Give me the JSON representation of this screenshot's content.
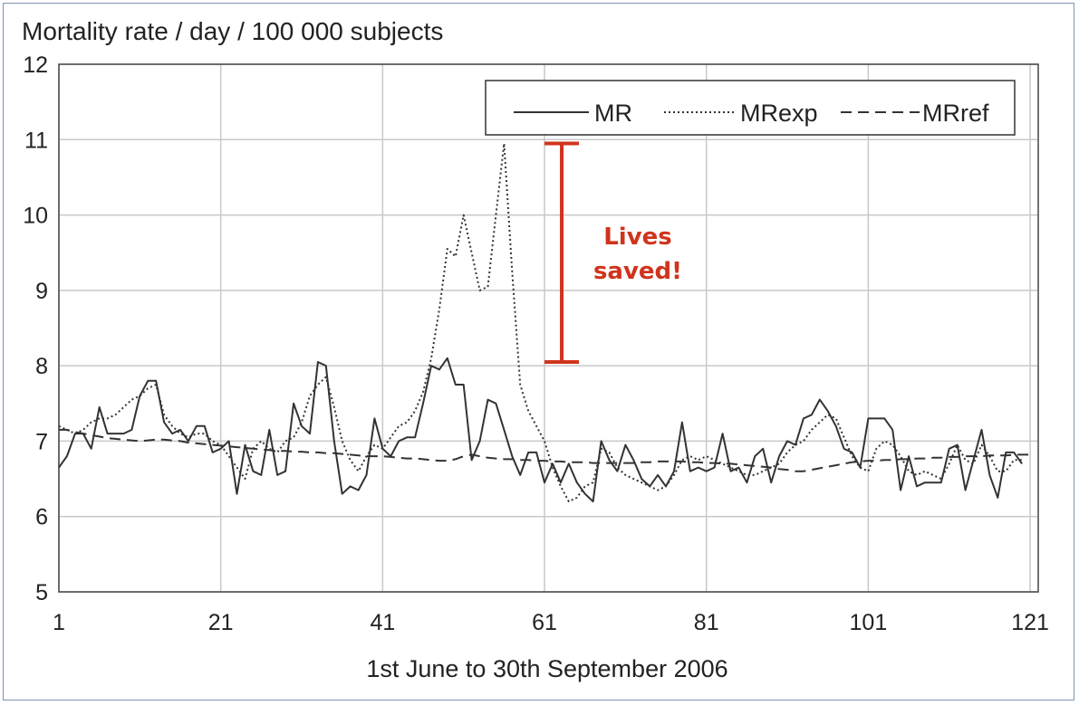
{
  "colors": {
    "annotation": "#d0341c",
    "grid": "#c8c8c8",
    "frame": "#7f95b5",
    "series": "#333333"
  },
  "chart_data": {
    "type": "line",
    "title": "",
    "ylabel": "Mortality rate / day / 100 000 subjects",
    "xlabel": "1st June to 30th September 2006",
    "xlim": [
      1,
      122
    ],
    "ylim": [
      5,
      12
    ],
    "xticks": [
      1,
      21,
      41,
      61,
      81,
      101,
      121
    ],
    "yticks": [
      5,
      6,
      7,
      8,
      9,
      10,
      11,
      12
    ],
    "grid": true,
    "legend_position": "top-right",
    "series": [
      {
        "name": "MR",
        "style": "solid",
        "values": [
          6.65,
          6.8,
          7.1,
          7.1,
          6.9,
          7.45,
          7.1,
          7.1,
          7.1,
          7.15,
          7.6,
          7.8,
          7.8,
          7.25,
          7.1,
          7.15,
          7.0,
          7.2,
          7.2,
          6.85,
          6.9,
          7.0,
          6.3,
          6.95,
          6.6,
          6.55,
          7.15,
          6.55,
          6.6,
          7.5,
          7.2,
          7.1,
          8.05,
          8.0,
          7.0,
          6.3,
          6.4,
          6.35,
          6.55,
          7.3,
          6.9,
          6.8,
          7.0,
          7.05,
          7.05,
          7.5,
          8.0,
          7.95,
          8.1,
          7.75,
          7.75,
          6.75,
          7.0,
          7.55,
          7.5,
          7.15,
          6.8,
          6.55,
          6.85,
          6.85,
          6.45,
          6.7,
          6.45,
          6.7,
          6.45,
          6.3,
          6.2,
          7.0,
          6.75,
          6.6,
          6.95,
          6.75,
          6.5,
          6.4,
          6.55,
          6.4,
          6.6,
          7.25,
          6.6,
          6.65,
          6.6,
          6.65,
          7.1,
          6.6,
          6.65,
          6.45,
          6.8,
          6.9,
          6.45,
          6.8,
          7.0,
          6.95,
          7.3,
          7.35,
          7.55,
          7.4,
          7.2,
          6.9,
          6.85,
          6.65,
          7.3,
          7.3,
          7.3,
          7.15,
          6.35,
          6.8,
          6.4,
          6.45,
          6.45,
          6.45,
          6.9,
          6.95,
          6.35,
          6.75,
          7.15,
          6.55,
          6.25,
          6.85,
          6.85,
          6.7
        ]
      },
      {
        "name": "MRexp",
        "style": "dotted",
        "values": [
          7.2,
          7.15,
          7.1,
          7.15,
          7.25,
          7.3,
          7.3,
          7.35,
          7.45,
          7.55,
          7.6,
          7.7,
          7.75,
          7.35,
          7.2,
          7.1,
          7.05,
          7.1,
          7.1,
          7.0,
          6.95,
          6.8,
          6.65,
          6.5,
          6.9,
          7.0,
          6.9,
          6.85,
          7.0,
          7.05,
          7.25,
          7.6,
          7.75,
          7.85,
          7.45,
          7.0,
          6.75,
          6.6,
          6.8,
          6.95,
          6.9,
          7.05,
          7.2,
          7.25,
          7.4,
          7.65,
          8.1,
          8.75,
          9.55,
          9.45,
          10.0,
          9.5,
          9.0,
          9.05,
          10.0,
          10.95,
          9.25,
          7.75,
          7.4,
          7.2,
          7.0,
          6.65,
          6.4,
          6.2,
          6.25,
          6.4,
          6.45,
          6.9,
          6.85,
          6.65,
          6.55,
          6.5,
          6.45,
          6.4,
          6.35,
          6.4,
          6.55,
          6.75,
          6.8,
          6.75,
          6.8,
          6.75,
          6.7,
          6.65,
          6.6,
          6.55,
          6.55,
          6.6,
          6.65,
          6.7,
          6.85,
          6.95,
          7.0,
          7.15,
          7.25,
          7.35,
          7.3,
          7.05,
          6.8,
          6.65,
          6.6,
          6.9,
          7.0,
          6.95,
          6.8,
          6.6,
          6.55,
          6.6,
          6.55,
          6.5,
          6.7,
          6.95,
          6.75,
          6.7,
          6.95,
          6.8,
          6.6,
          6.6,
          6.75,
          6.75
        ]
      },
      {
        "name": "MRref",
        "style": "dashed",
        "values": [
          7.15,
          7.15,
          7.12,
          7.1,
          7.08,
          7.06,
          7.04,
          7.03,
          7.02,
          7.01,
          7.0,
          7.01,
          7.02,
          7.02,
          7.01,
          7.0,
          6.98,
          6.97,
          6.96,
          6.95,
          6.94,
          6.93,
          6.92,
          6.91,
          6.9,
          6.89,
          6.88,
          6.87,
          6.87,
          6.86,
          6.86,
          6.85,
          6.85,
          6.84,
          6.84,
          6.83,
          6.82,
          6.81,
          6.8,
          6.8,
          6.8,
          6.79,
          6.78,
          6.77,
          6.77,
          6.76,
          6.75,
          6.74,
          6.74,
          6.76,
          6.8,
          6.82,
          6.8,
          6.78,
          6.77,
          6.76,
          6.76,
          6.75,
          6.75,
          6.74,
          6.74,
          6.73,
          6.73,
          6.72,
          6.72,
          6.72,
          6.71,
          6.71,
          6.71,
          6.71,
          6.71,
          6.71,
          6.72,
          6.72,
          6.73,
          6.73,
          6.73,
          6.73,
          6.72,
          6.72,
          6.71,
          6.71,
          6.7,
          6.7,
          6.69,
          6.68,
          6.67,
          6.66,
          6.65,
          6.63,
          6.62,
          6.6,
          6.6,
          6.62,
          6.64,
          6.66,
          6.68,
          6.7,
          6.72,
          6.73,
          6.74,
          6.74,
          6.75,
          6.75,
          6.76,
          6.76,
          6.77,
          6.77,
          6.78,
          6.78,
          6.79,
          6.79,
          6.8,
          6.8,
          6.8,
          6.81,
          6.81,
          6.81,
          6.82,
          6.82,
          6.82
        ]
      }
    ],
    "annotations": [
      {
        "text_line1": "Lives",
        "text_line2": "saved!",
        "bracket_x": 61,
        "bracket_y_top": 10.95,
        "bracket_y_bottom": 8.05
      }
    ]
  }
}
